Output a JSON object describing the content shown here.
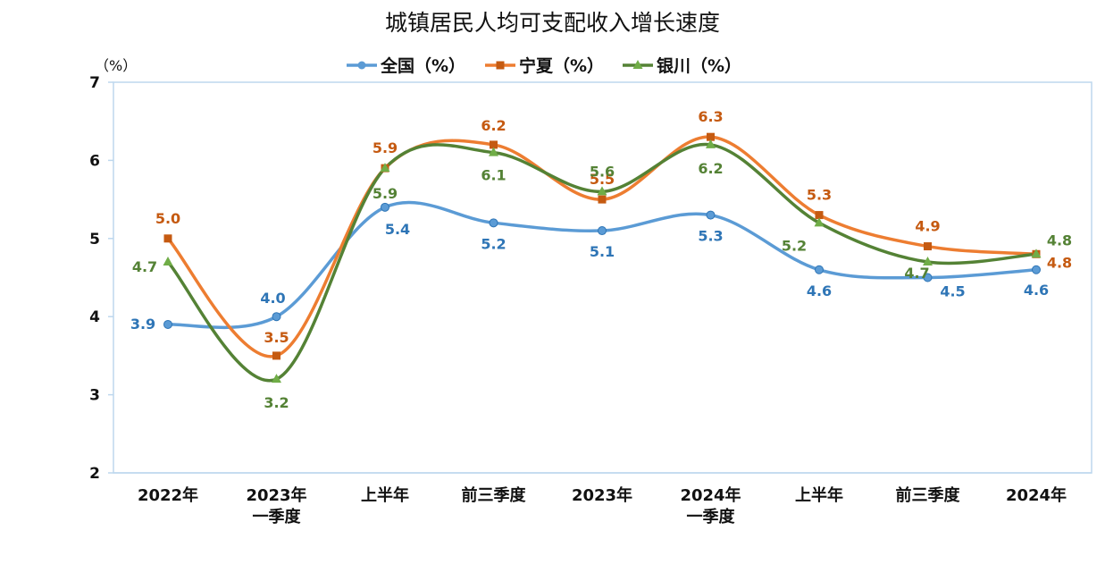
{
  "chart_data": {
    "type": "line",
    "title": "城镇居民人均可支配收入增长速度",
    "ylabel": "（%）",
    "ylim": [
      2,
      7
    ],
    "yticks": [
      "2",
      "3",
      "4",
      "5",
      "6",
      "7"
    ],
    "categories": [
      [
        "2022年"
      ],
      [
        "2023年",
        "一季度"
      ],
      [
        "上半年"
      ],
      [
        "前三季度"
      ],
      [
        "2023年"
      ],
      [
        "2024年",
        "一季度"
      ],
      [
        "上半年"
      ],
      [
        "前三季度"
      ],
      [
        "2024年"
      ]
    ],
    "legend_position": "top",
    "grid": false,
    "series": [
      {
        "name": "全国（%）",
        "color": "#5B9BD5",
        "label_color": "#2E75B6",
        "marker": "circle",
        "values": [
          3.9,
          4.0,
          5.4,
          5.2,
          5.1,
          5.3,
          4.6,
          4.5,
          4.6
        ],
        "labels": [
          "3.9",
          "4.0",
          "5.4",
          "5.2",
          "5.1",
          "5.3",
          "4.6",
          "4.5",
          "4.6"
        ]
      },
      {
        "name": "宁夏（%）",
        "color": "#ED7D31",
        "label_color": "#C55A11",
        "marker": "square",
        "values": [
          5.0,
          3.5,
          5.9,
          6.2,
          5.5,
          6.3,
          5.3,
          4.9,
          4.8
        ],
        "labels": [
          "5.0",
          "3.5",
          "5.9",
          "6.2",
          "5.5",
          "6.3",
          "5.3",
          "4.9",
          "4.8"
        ]
      },
      {
        "name": "银川（%）",
        "color": "#548235",
        "label_color": "#548235",
        "marker": "triangle",
        "values": [
          4.7,
          3.2,
          5.9,
          6.1,
          5.6,
          6.2,
          5.2,
          4.7,
          4.8
        ],
        "labels": [
          "4.7",
          "3.2",
          "5.9",
          "6.1",
          "5.6",
          "6.2",
          "5.2",
          "4.7",
          "4.8"
        ]
      }
    ]
  }
}
